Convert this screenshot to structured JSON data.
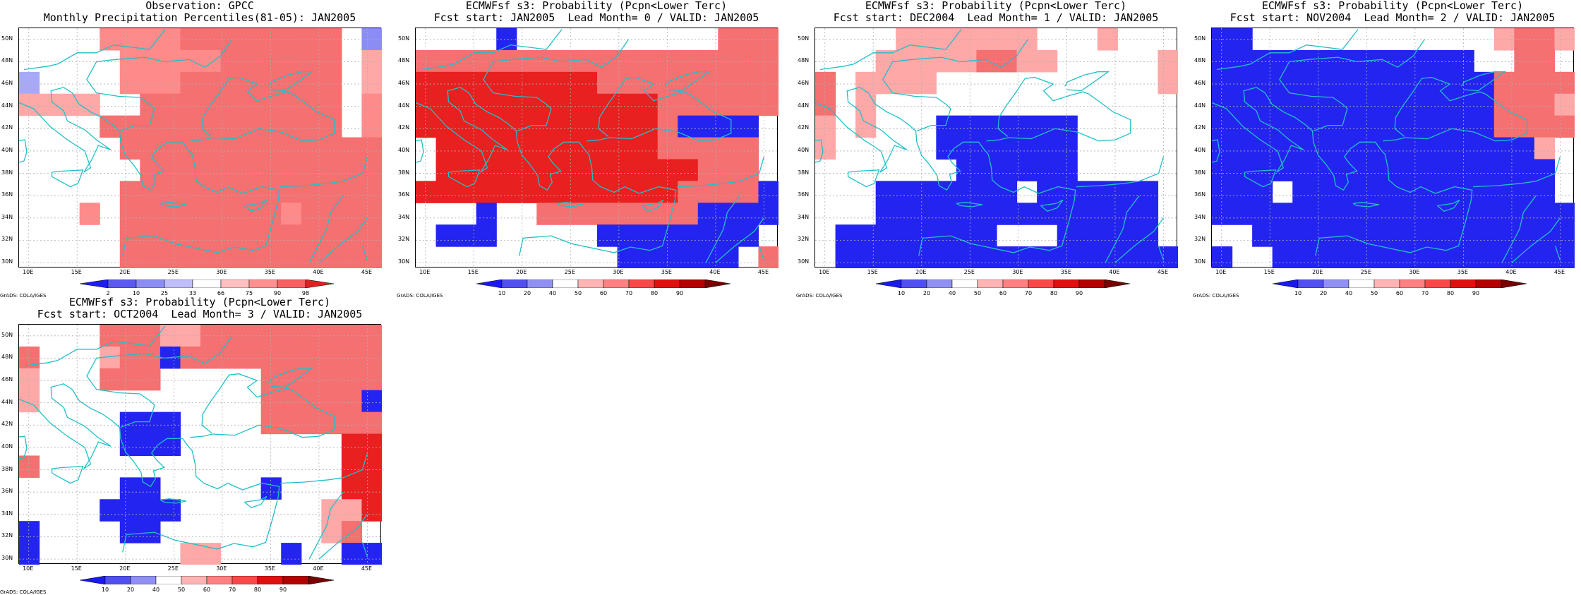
{
  "chart_data": [
    {
      "type": "heatmap",
      "title": "Observation: GPCC",
      "subtitle": "Monthly Precipitation Percentiles(81-05): JAN2005",
      "x_ticks": [
        "10E",
        "15E",
        "20E",
        "25E",
        "30E",
        "35E",
        "40E",
        "45E"
      ],
      "y_ticks": [
        "30N",
        "32N",
        "34N",
        "36N",
        "38N",
        "40N",
        "42N",
        "44N",
        "46N",
        "48N",
        "50N"
      ],
      "colorbar": {
        "labels": [
          "2",
          "10",
          "25",
          "33",
          "66",
          "75",
          "90",
          "98"
        ],
        "colors": [
          "#1e1ef0",
          "#5a5af0",
          "#8c8cf5",
          "#bebefa",
          "#ffffff",
          "#ffc0c0",
          "#ff9090",
          "#f86060",
          "#e02020"
        ]
      },
      "rows": [
        "ssssMMMMhhhhhhhhsN",
        "sssssMMMMMhhhhhhsL",
        "kssssMMMhhhhhhhhsL",
        "LLLLsshhhhhhhhhhsM",
        "sssshhhhhhhhhhhhsM",
        "ssssshhhhhhhhhhhhh",
        "sssssshhhhhhhhhhhh",
        "ssssshhhhhhhhhhhhh",
        "sssMshhhhhhhhMhhhh",
        "ssssshhhhhhhhhhhhh",
        "ssssshhhhhhhhhhhhh"
      ],
      "credit": "GrADS: COLA/IGES"
    },
    {
      "type": "heatmap",
      "title": "ECMWFsf s3: Probability (Pcpn<Lower Terc)",
      "subtitle": "Fcst start: JAN2005  Lead Month= 0 / VALID: JAN2005",
      "x_ticks": [
        "10E",
        "15E",
        "20E",
        "25E",
        "30E",
        "35E",
        "40E",
        "45E"
      ],
      "y_ticks": [
        "30N",
        "32N",
        "34N",
        "36N",
        "38N",
        "40N",
        "42N",
        "44N",
        "46N",
        "48N",
        "50N"
      ],
      "colorbar": {
        "labels": [
          "10",
          "20",
          "40",
          "50",
          "60",
          "70",
          "80",
          "90"
        ],
        "colors": [
          "#1a1aee",
          "#5050f0",
          "#9090f4",
          "#ffffff",
          "#ffb4b4",
          "#ff8080",
          "#f84848",
          "#e01010",
          "#b40000",
          "#780000"
        ]
      },
      "rows": [
        "ssssBsssssssssshhh",
        "hhhhhhhhhhhhhhhhhh",
        "RRRRRRRRRhhhhhhhhh",
        "RRRRRRRRRRRRhhhhhh",
        "RRRRRRRRRRRRhBBBBs",
        "sRRRRRRRRRRRhhhhhs",
        "sRRRRRRRRRRRRRhhhs",
        "RRRRRRRRRRRRRhhhhB",
        "sssBsshhhhhhhhBBBB",
        "sBBBsssssBBBBBBBBs",
        "ssssssssssBBBBBBsh"
      ],
      "credit": "GrADS: COLA/IGES"
    },
    {
      "type": "heatmap",
      "title": "ECMWFsf s3: Probability (Pcpn<Lower Terc)",
      "subtitle": "Fcst start: DEC2004  Lead Month= 1 / VALID: JAN2005",
      "x_ticks": [
        "10E",
        "15E",
        "20E",
        "25E",
        "30E",
        "35E",
        "40E",
        "45E"
      ],
      "y_ticks": [
        "30N",
        "32N",
        "34N",
        "36N",
        "38N",
        "40N",
        "42N",
        "44N",
        "46N",
        "48N",
        "50N"
      ],
      "colorbar": {
        "labels": [
          "10",
          "20",
          "40",
          "50",
          "60",
          "70",
          "80",
          "90"
        ],
        "colors": [
          "#1a1aee",
          "#5050f0",
          "#9090f4",
          "#ffffff",
          "#ffb4b4",
          "#ff8080",
          "#f84848",
          "#e01010",
          "#b40000",
          "#780000"
        ]
      },
      "rows": [
        "ssssLLLLLLLsssLsss",
        "sssLLLLLhhLLsssssL",
        "hsLLLLsssssssssssL",
        "hsLsssssssssssssss",
        "LsLsssBBBBBBBsssss",
        "LsssssBBBBBBBsssss",
        "sssssssBBBBBBsssss",
        "sssBBBBBBBsBBBBBBs",
        "sssBBBBBBBBBBBBBBs",
        "sBBBBBBBBsssBBBBBs",
        "sBBBBBBBBBBBBBBBBB"
      ],
      "credit": "GrADS: COLA/IGES"
    },
    {
      "type": "heatmap",
      "title": "ECMWFsf s3: Probability (Pcpn<Lower Terc)",
      "subtitle": "Fcst start: NOV2004  Lead Month= 2 / VALID: JAN2005",
      "x_ticks": [
        "10E",
        "15E",
        "20E",
        "25E",
        "30E",
        "35E",
        "40E",
        "45E"
      ],
      "y_ticks": [
        "30N",
        "32N",
        "34N",
        "36N",
        "38N",
        "40N",
        "42N",
        "44N",
        "46N",
        "48N",
        "50N"
      ],
      "colorbar": {
        "labels": [
          "10",
          "20",
          "40",
          "50",
          "60",
          "70",
          "80",
          "90"
        ],
        "colors": [
          "#1a1aee",
          "#5050f0",
          "#9090f4",
          "#ffffff",
          "#ffb4b4",
          "#ff8080",
          "#f84848",
          "#e01010",
          "#b40000",
          "#780000"
        ]
      },
      "rows": [
        "BBssssssssssssLhhL",
        "BBBBBBBBBBBBBsshhs",
        "BBBBBBBBBBBBBBhhhh",
        "BBBBBBBBBBBBBBhhhL",
        "BBBBBBBBBBBBBBhhhh",
        "BBBBBBBBBBBBBBBBLs",
        "BBBBBBBBBBBBBBBBBs",
        "BBBsBBBBBBBBBBBBBs",
        "BBBBBBBBBBBBBBBBBB",
        "ssBBBBBBBBBBBBBBBB",
        "BssBBBBBBBBBBBBBBB"
      ],
      "credit": "GrADS: COLA/IGES"
    },
    {
      "type": "heatmap",
      "title": "ECMWFsf s3: Probability (Pcpn<Lower Terc)",
      "subtitle": "Fcst start: OCT2004  Lead Month= 3 / VALID: JAN2005",
      "x_ticks": [
        "10E",
        "15E",
        "20E",
        "25E",
        "30E",
        "35E",
        "40E",
        "45E"
      ],
      "y_ticks": [
        "30N",
        "32N",
        "34N",
        "36N",
        "38N",
        "40N",
        "42N",
        "44N",
        "46N",
        "48N",
        "50N"
      ],
      "colorbar": {
        "labels": [
          "10",
          "20",
          "40",
          "50",
          "60",
          "70",
          "80",
          "90"
        ],
        "colors": [
          "#1a1aee",
          "#5050f0",
          "#9090f4",
          "#ffffff",
          "#ffb4b4",
          "#ff8080",
          "#f84848",
          "#e01010",
          "#b40000",
          "#780000"
        ]
      },
      "rows": [
        "sssshhhLLhhhhhhhhh",
        "hsssLhhBhhhhhhhhhh",
        "Lssshhhssssshhhhhh",
        "LssssssssssshhhhhB",
        "sssssBBBsssshhhhhh",
        "sssssBBBssssssssRR",
        "hsssssssssssssssRR",
        "sssssBBsssssBsssRR",
        "ssssBBBBsssssssLLR",
        "BssssBBssssssssLhs",
        "BsssssssLLsssBssBB"
      ],
      "credit": "GrADS: COLA/IGES"
    }
  ],
  "cell_palette": {
    "s": "#ffffff",
    "L": "#ffa8a8",
    "M": "#ff8a8a",
    "h": "#f57070",
    "R": "#e82020",
    "N": "#8c8cf5",
    "k": "#a8a8f8",
    "B": "#2424f0"
  },
  "coast_color": "#20c0c8",
  "grid_color": "#b0b0b0"
}
